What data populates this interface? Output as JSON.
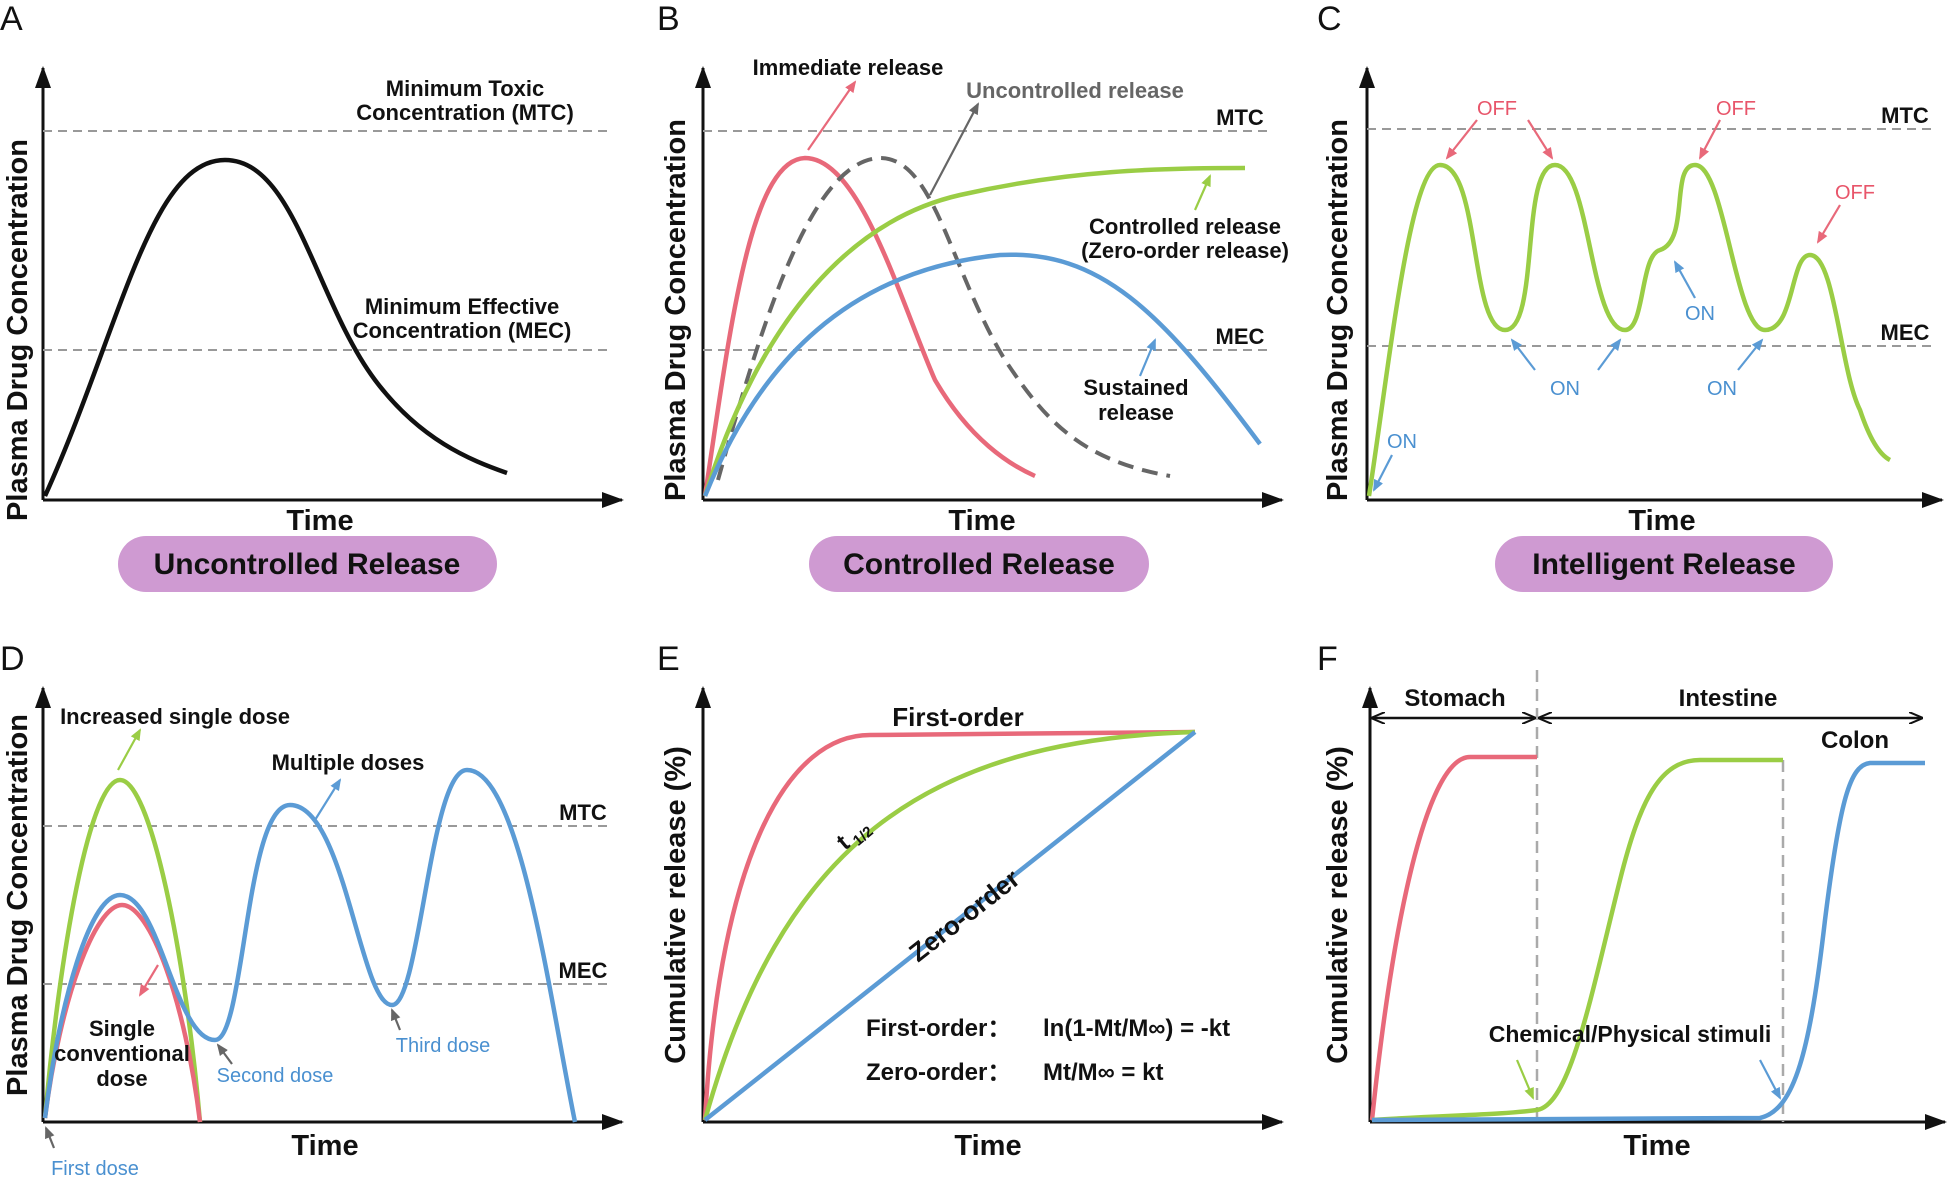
{
  "panels": {
    "A": {
      "letter": "A",
      "ylabel": "Plasma Drug Concentration",
      "xlabel": "Time",
      "mtc_line1": "Minimum Toxic",
      "mtc_line2": "Concentration (MTC)",
      "mec_line1": "Minimum Effective",
      "mec_line2": "Concentration (MEC)",
      "badge": "Uncontrolled Release"
    },
    "B": {
      "letter": "B",
      "ylabel": "Plasma Drug Concentration",
      "xlabel": "Time",
      "mtc": "MTC",
      "mec": "MEC",
      "immediate": "Immediate release",
      "uncontrolled": "Uncontrolled release",
      "controlled_line1": "Controlled release",
      "controlled_line2": "(Zero-order release)",
      "sustained_line1": "Sustained",
      "sustained_line2": "release",
      "badge": "Controlled Release"
    },
    "C": {
      "letter": "C",
      "ylabel": "Plasma Drug Concentration",
      "xlabel": "Time",
      "mtc": "MTC",
      "mec": "MEC",
      "off": "OFF",
      "on": "ON",
      "badge": "Intelligent Release"
    },
    "D": {
      "letter": "D",
      "ylabel": "Plasma Drug Concentration",
      "xlabel": "Time",
      "mtc": "MTC",
      "mec": "MEC",
      "increased": "Increased single dose",
      "multiple": "Multiple doses",
      "single_line1": "Single",
      "single_line2": "conventional",
      "single_line3": "dose",
      "first_dose": "First dose",
      "second_dose": "Second dose",
      "third_dose": "Third dose"
    },
    "E": {
      "letter": "E",
      "ylabel": "Cumulative release (%)",
      "xlabel": "Time",
      "first_order": "First-order",
      "zero_order": "Zero-order",
      "t_half": "t",
      "t_half_sub": "1/2",
      "formula1_label": "First-order：",
      "formula1": "ln(1-Mt/M∞) = -kt",
      "formula2_label": "Zero-order：",
      "formula2": "Mt/M∞ = kt"
    },
    "F": {
      "letter": "F",
      "ylabel": "Cumulative release (%)",
      "xlabel": "Time",
      "stomach": "Stomach",
      "intestine": "Intestine",
      "colon": "Colon",
      "stimuli": "Chemical/Physical stimuli"
    }
  },
  "colors": {
    "red": "#e8697a",
    "green": "#9acd45",
    "blue": "#5b9bd5",
    "badge": "#cf9ad2",
    "dash": "#999999"
  }
}
